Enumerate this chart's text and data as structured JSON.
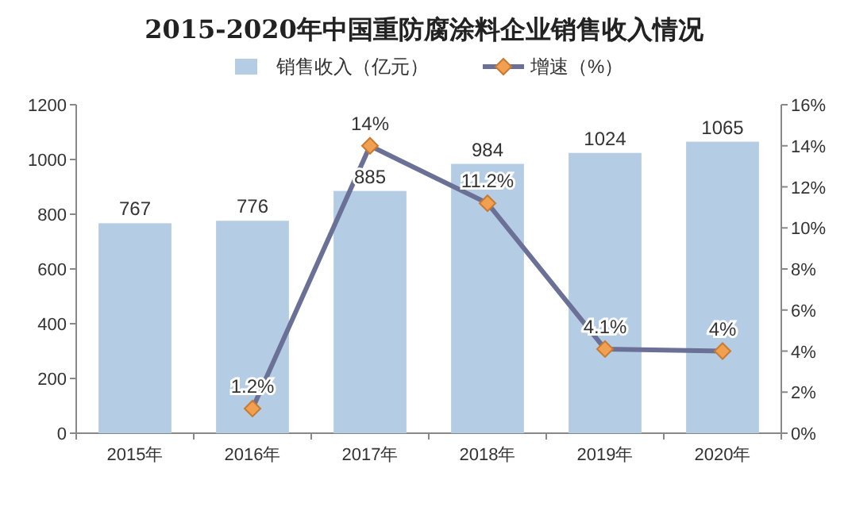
{
  "chart_data": {
    "type": "bar",
    "title": "2015-2020年中国重防腐涂料企业销售收入情况",
    "categories": [
      "2015年",
      "2016年",
      "2017年",
      "2018年",
      "2019年",
      "2020年"
    ],
    "series": [
      {
        "name": "销售收入（亿元）",
        "color": "#b4cde4",
        "values": [
          767,
          776,
          885,
          984,
          1024,
          1065
        ],
        "value_labels": [
          "767",
          "776",
          "885",
          "984",
          "1024",
          "1065"
        ]
      },
      {
        "name": "增速（%）",
        "type": "line",
        "axis": "y2",
        "color": "#6b7196",
        "marker": "diamond",
        "values": [
          null,
          1.2,
          14,
          11.2,
          4.1,
          4
        ],
        "value_labels": [
          null,
          "1.2%",
          "14%",
          "11.2%",
          "4.1%",
          "4%"
        ]
      }
    ],
    "ylim": [
      0,
      1200
    ],
    "yticks": [
      0,
      200,
      400,
      600,
      800,
      1000,
      1200
    ],
    "y2lim": [
      0,
      16
    ],
    "y2ticks": [
      {
        "value": 0,
        "label": "0%"
      },
      {
        "value": 2,
        "label": "2%"
      },
      {
        "value": 4,
        "label": "4%"
      },
      {
        "value": 6,
        "label": "6%"
      },
      {
        "value": 8,
        "label": "8%"
      },
      {
        "value": 10,
        "label": "10%"
      },
      {
        "value": 12,
        "label": "12%"
      },
      {
        "value": 14,
        "label": "14%"
      },
      {
        "value": 16,
        "label": "16%"
      }
    ],
    "legend": "top"
  }
}
